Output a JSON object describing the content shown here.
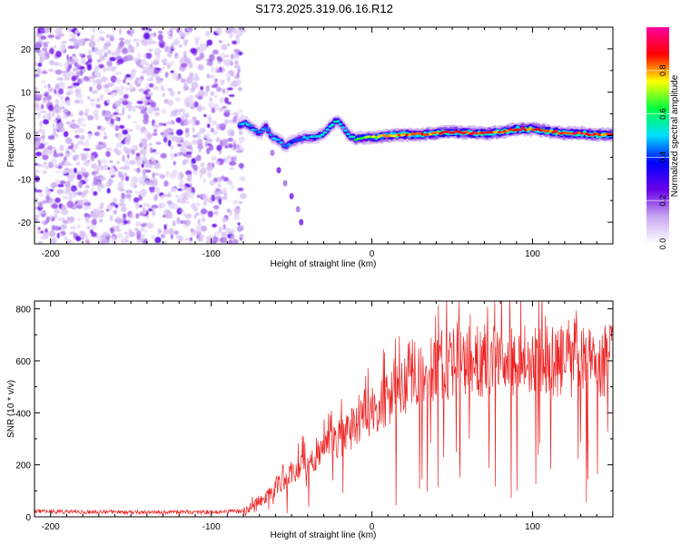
{
  "chart_data": [
    {
      "type": "heatmap",
      "title": "S173.2025.319.06.16.R12",
      "xlabel": "Height of straight line (km)",
      "ylabel": "Frequency (Hz)",
      "xlim": [
        -210,
        150
      ],
      "ylim": [
        -25,
        25
      ],
      "xticks": [
        -200,
        -100,
        0,
        100
      ],
      "xtick_labels": [
        "-200",
        "-100",
        "0",
        "100"
      ],
      "yticks": [
        -20,
        -10,
        0,
        10,
        20
      ],
      "ytick_labels": [
        "-20",
        "-10",
        "0",
        "10",
        "20"
      ],
      "noise_region_x": [
        -210,
        -80
      ],
      "signal_track": {
        "x": [
          -82,
          -78,
          -74,
          -70,
          -66,
          -62,
          -58,
          -54,
          -50,
          -46,
          -42,
          -38,
          -34,
          -30,
          -26,
          -22,
          -18,
          -14,
          -10,
          -6,
          -2,
          0,
          10,
          20,
          30,
          40,
          50,
          60,
          70,
          80,
          90,
          100,
          110,
          120,
          130,
          140,
          150
        ],
        "y": [
          2.5,
          2.8,
          1.5,
          0.5,
          2.0,
          -0.5,
          -1.0,
          -2.5,
          -1.5,
          -1.0,
          -0.5,
          -0.5,
          -0.2,
          0.5,
          2.0,
          3.5,
          2.0,
          0.0,
          -0.8,
          -0.5,
          -0.3,
          -0.5,
          0.0,
          0.2,
          0.3,
          0.5,
          0.8,
          0.6,
          0.5,
          0.8,
          1.5,
          1.5,
          1.0,
          0.5,
          0.5,
          0.2,
          0.2
        ],
        "amplitude": [
          0.5,
          0.55,
          0.5,
          0.45,
          0.5,
          0.5,
          0.55,
          0.5,
          0.45,
          0.45,
          0.5,
          0.55,
          0.55,
          0.55,
          0.6,
          0.6,
          0.5,
          0.6,
          0.65,
          0.7,
          0.75,
          0.75,
          0.85,
          0.9,
          0.9,
          0.9,
          0.95,
          0.92,
          0.95,
          0.9,
          0.95,
          0.9,
          0.92,
          0.95,
          0.95,
          0.92,
          0.9
        ]
      },
      "branch": {
        "x": [
          -62,
          -58,
          -54,
          -50,
          -46,
          -44
        ],
        "y": [
          -4,
          -8,
          -11,
          -14,
          -17,
          -20
        ],
        "amplitude": 0.15
      },
      "colorbar": {
        "label": "Normalized spectral amplitude",
        "range": [
          0,
          1
        ],
        "ticks": [
          0.0,
          0.2,
          0.4,
          0.6,
          0.8
        ],
        "tick_labels": [
          "0.0",
          "0.2",
          "0.4",
          "0.6",
          "0.8"
        ],
        "stops": [
          "#ffffff",
          "#c8a8f0",
          "#6a00e8",
          "#0000ff",
          "#00e0ff",
          "#00ff40",
          "#ffff00",
          "#ff0000",
          "#ff00a0"
        ]
      }
    },
    {
      "type": "line",
      "xlabel": "Height of straight line (km)",
      "ylabel": "SNR (10 * v/v)",
      "xlim": [
        -210,
        150
      ],
      "ylim": [
        0,
        830
      ],
      "xticks": [
        -200,
        -100,
        0,
        100
      ],
      "xtick_labels": [
        "-200",
        "-100",
        "0",
        "100"
      ],
      "yticks": [
        0,
        200,
        400,
        600,
        800
      ],
      "ytick_labels": [
        "0",
        "200",
        "400",
        "600",
        "800"
      ],
      "series": [
        {
          "name": "SNR",
          "color": "#ee2222",
          "envelope_x": [
            -210,
            -150,
            -100,
            -80,
            -70,
            -60,
            -50,
            -40,
            -30,
            -20,
            -10,
            0,
            10,
            20,
            30,
            40,
            50,
            60,
            70,
            80,
            90,
            100,
            110,
            120,
            130,
            140,
            150
          ],
          "envelope_y": [
            20,
            18,
            18,
            22,
            60,
            110,
            170,
            220,
            260,
            300,
            350,
            400,
            450,
            510,
            560,
            580,
            590,
            600,
            600,
            595,
            600,
            605,
            600,
            595,
            600,
            600,
            600
          ]
        }
      ]
    }
  ]
}
